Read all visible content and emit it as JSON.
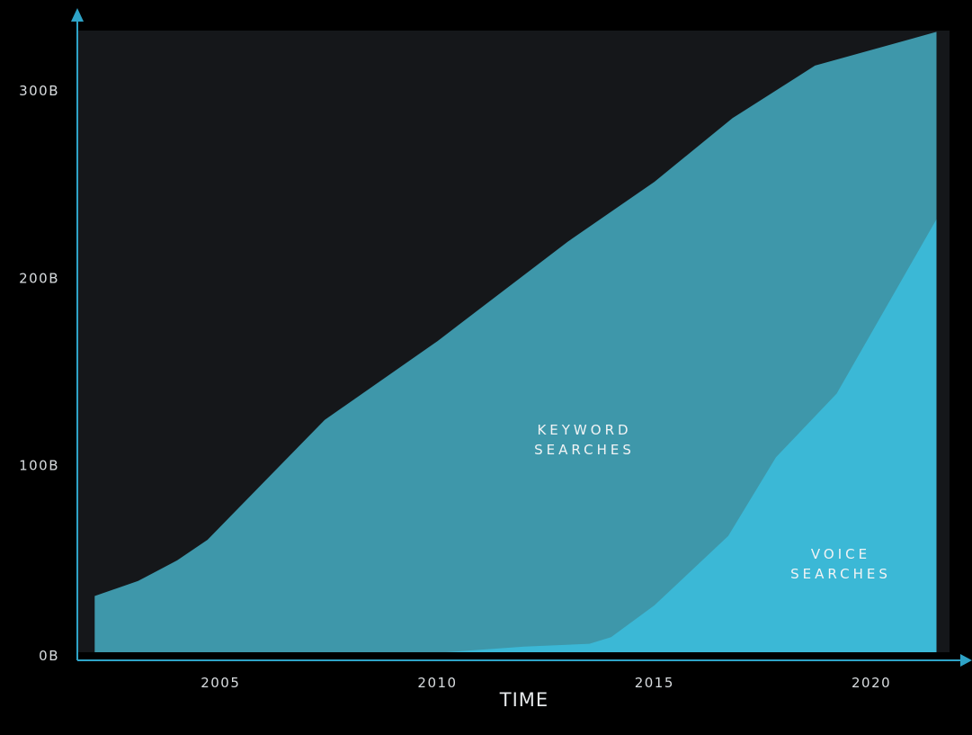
{
  "chart_data": {
    "type": "area",
    "title": "",
    "xlabel": "TIME",
    "ylabel": "",
    "x_ticks": [
      "2005",
      "2010",
      "2015",
      "2020"
    ],
    "x_tick_values": [
      2005,
      2010,
      2015,
      2020
    ],
    "y_ticks": [
      "0B",
      "100B",
      "200B",
      "300B"
    ],
    "y_tick_values": [
      0,
      100,
      200,
      300
    ],
    "xlim": [
      2001.7,
      2021.8
    ],
    "ylim": [
      0,
      320
    ],
    "grid": false,
    "series": [
      {
        "label": "KEYWORD SEARCHES",
        "color": "#3e97aa",
        "points": [
          [
            2002.1,
            30
          ],
          [
            2003.1,
            38
          ],
          [
            2004,
            49
          ],
          [
            2004.7,
            60
          ],
          [
            2007.4,
            124
          ],
          [
            2010,
            166
          ],
          [
            2013,
            219
          ],
          [
            2015,
            251
          ],
          [
            2016.8,
            285
          ],
          [
            2018.7,
            313
          ],
          [
            2021.5,
            331
          ]
        ]
      },
      {
        "label": "VOICE SEARCHES",
        "color": "#3bb8d6",
        "points": [
          [
            2010.2,
            0
          ],
          [
            2012,
            3
          ],
          [
            2013.5,
            4.5
          ],
          [
            2014,
            8
          ],
          [
            2015,
            25
          ],
          [
            2016.7,
            62
          ],
          [
            2017.8,
            104
          ],
          [
            2019.2,
            138
          ],
          [
            2021.5,
            231
          ]
        ]
      }
    ],
    "colors": {
      "background": "#000000",
      "plot_background": "#15171a",
      "axis": "#2ea3c7",
      "keyword_area": "#3e97aa",
      "voice_area": "#3bb8d6"
    }
  }
}
